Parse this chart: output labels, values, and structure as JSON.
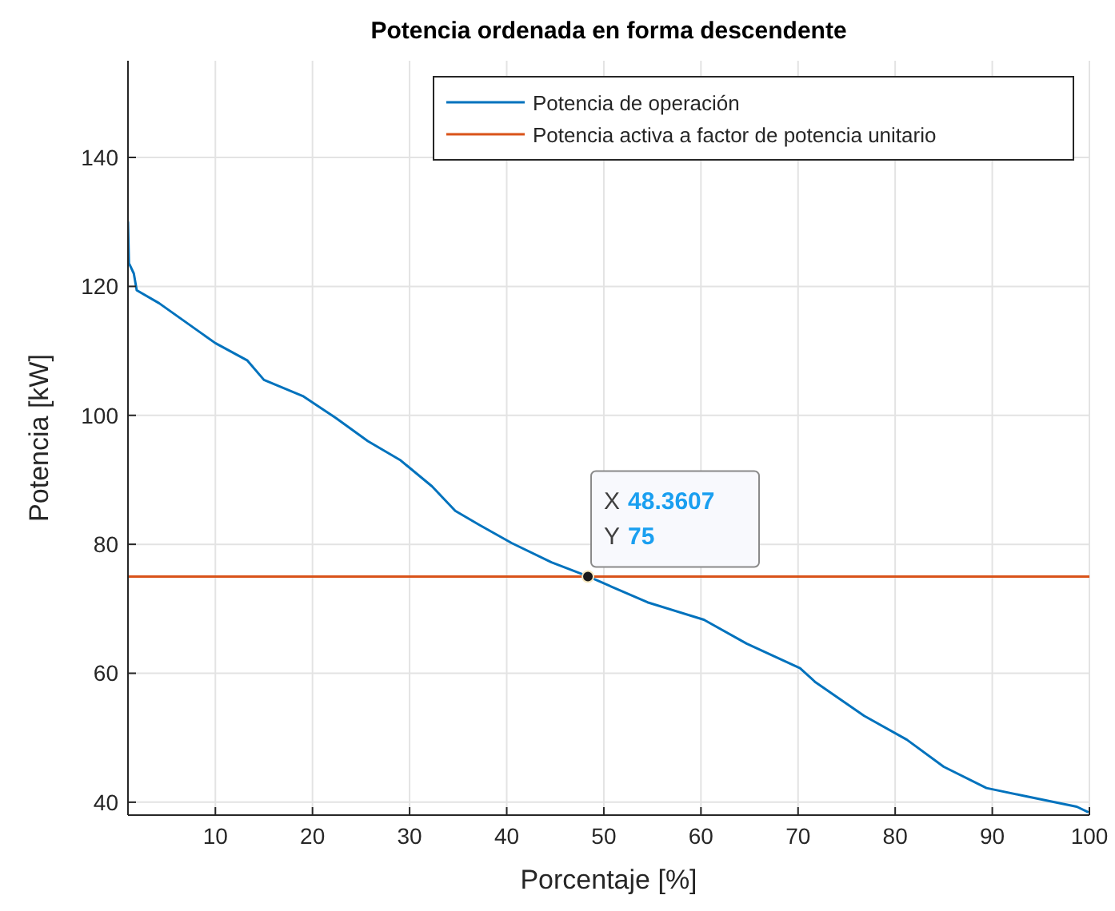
{
  "chart_data": {
    "type": "line",
    "title": "Potencia ordenada en forma descendente",
    "xlabel": "Porcentaje [%]",
    "ylabel": "Potencia [kW]",
    "xlim": [
      1,
      100
    ],
    "ylim": [
      38,
      155
    ],
    "xticks": [
      10,
      20,
      30,
      40,
      50,
      60,
      70,
      80,
      90,
      100
    ],
    "yticks": [
      40,
      60,
      80,
      100,
      120,
      140
    ],
    "grid": true,
    "legend": "top right",
    "line_style": "solid",
    "series": [
      {
        "name": "Potencia de operación",
        "color": "#0072bd",
        "x": [
          1,
          1.1,
          1.6,
          1.9,
          4.2,
          10,
          13.3,
          15,
          19,
          22.4,
          25.7,
          29,
          32.3,
          34.7,
          37.2,
          40.5,
          44.6,
          48.4,
          54.5,
          60.3,
          64.7,
          70.2,
          71.8,
          76.8,
          81.2,
          85,
          89.4,
          93.2,
          98.7,
          99.8
        ],
        "values": [
          130,
          123.6,
          122,
          119.4,
          117.4,
          111.2,
          108.5,
          105.5,
          103,
          99.6,
          96,
          93.1,
          89,
          85.2,
          83,
          80.2,
          77.2,
          75,
          71,
          68.3,
          64.6,
          60.8,
          58.6,
          53.4,
          49.7,
          45.5,
          42.2,
          41,
          39.3,
          38.5
        ]
      },
      {
        "name": "Potencia activa a factor de potencia unitario",
        "color": "#d95319",
        "x": [
          1,
          100
        ],
        "values": [
          75,
          75
        ]
      }
    ],
    "annotations": [
      {
        "text": "X 48.3607\nY 75",
        "x": 48.3607,
        "y": 75
      }
    ]
  }
}
